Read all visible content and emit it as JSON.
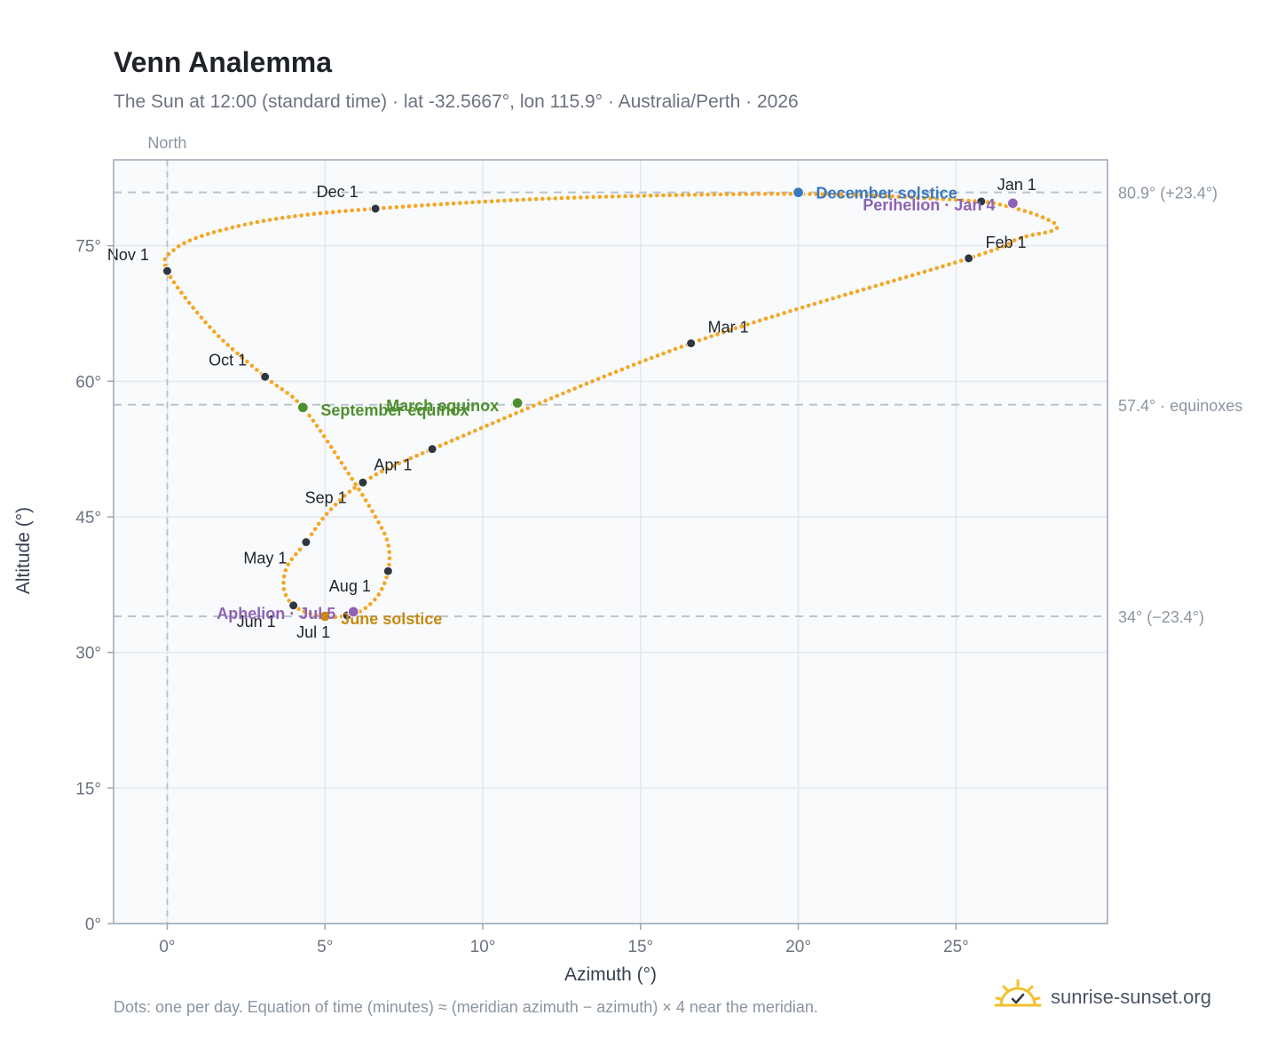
{
  "header": {
    "title": "Venn Analemma",
    "subtitle": "The Sun at 12:00 (standard time) · lat -32.5667°, lon 115.9° · Australia/Perth · 2026"
  },
  "footer": {
    "note": "Dots: one per day. Equation of time (minutes) ≈ (meridian azimuth − azimuth) × 4 near the meridian.",
    "brand": "sunrise-sunset.org"
  },
  "chart_data": {
    "type": "scatter",
    "xlabel": "Azimuth (°)",
    "ylabel": "Altitude (°)",
    "xlim": [
      -1.7,
      29.8
    ],
    "ylim": [
      0,
      84.5
    ],
    "xticks": [
      0,
      5,
      10,
      15,
      20,
      25
    ],
    "xtick_labels": [
      "0°",
      "5°",
      "10°",
      "15°",
      "20°",
      "25°"
    ],
    "yticks": [
      0,
      15,
      30,
      45,
      60,
      75
    ],
    "ytick_labels": [
      "0°",
      "15°",
      "30°",
      "45°",
      "60°",
      "75°"
    ],
    "grid": true,
    "north_line": {
      "x": 0,
      "label": "North"
    },
    "reference_lines": [
      {
        "y": 80.9,
        "label": "80.9° (+23.4°)"
      },
      {
        "y": 57.4,
        "label": "57.4° · equinoxes"
      },
      {
        "y": 34.0,
        "label": "34° (−23.4°)"
      }
    ],
    "colors": {
      "path": "#f5a623",
      "month": "#2f3640",
      "december_solstice": "#3a78c2",
      "june_solstice": "#c98a12",
      "equinox": "#4f8f2f",
      "apsis": "#8e63b5",
      "grid": "#e3e8ee",
      "ref_line": "#b8c4d0",
      "plot_bg": "#f8fafc",
      "frame": "#9aa7b6"
    },
    "series": [
      {
        "anchors": [
          [
            25.8,
            79.9
          ],
          [
            26.2,
            79.7
          ],
          [
            26.8,
            79.2
          ],
          [
            27.4,
            78.6
          ],
          [
            27.9,
            77.9
          ],
          [
            28.2,
            77.2
          ],
          [
            28.0,
            76.6
          ],
          [
            27.0,
            75.8
          ],
          [
            25.4,
            73.6
          ],
          [
            16.6,
            64.2
          ],
          [
            8.4,
            52.5
          ],
          [
            6.2,
            48.8
          ],
          [
            5.1,
            45.5
          ],
          [
            4.4,
            42.2
          ],
          [
            3.8,
            39.5
          ],
          [
            3.7,
            37.0
          ],
          [
            4.0,
            35.2
          ],
          [
            4.6,
            34.2
          ],
          [
            5.2,
            33.9
          ],
          [
            5.7,
            34.1
          ],
          [
            6.2,
            34.7
          ],
          [
            6.7,
            36.4
          ],
          [
            7.0,
            39.0
          ],
          [
            7.0,
            42.0
          ],
          [
            6.6,
            45.0
          ],
          [
            5.8,
            49.5
          ],
          [
            4.3,
            57.1
          ],
          [
            3.1,
            60.5
          ],
          [
            1.4,
            65.8
          ],
          [
            0.0,
            72.2
          ],
          [
            0.2,
            74.5
          ],
          [
            1.3,
            76.3
          ],
          [
            3.5,
            78.0
          ],
          [
            6.6,
            79.1
          ],
          [
            12.0,
            80.2
          ],
          [
            18.0,
            80.7
          ],
          [
            22.0,
            80.6
          ],
          [
            25.8,
            79.9
          ]
        ]
      }
    ],
    "month_markers": [
      {
        "label": "Jan 1",
        "x": 25.8,
        "y": 79.9
      },
      {
        "label": "Feb 1",
        "x": 25.4,
        "y": 73.6
      },
      {
        "label": "Mar 1",
        "x": 16.6,
        "y": 64.2
      },
      {
        "label": "Apr 1",
        "x": 6.2,
        "y": 48.8
      },
      {
        "label": "May 1",
        "x": 4.4,
        "y": 42.2
      },
      {
        "label": "Jun 1",
        "x": 4.0,
        "y": 35.2
      },
      {
        "label": "Jul 1",
        "x": 5.7,
        "y": 34.1
      },
      {
        "label": "Aug 1",
        "x": 7.0,
        "y": 39.0
      },
      {
        "label": "Sep 1",
        "x": 8.4,
        "y": 52.5
      },
      {
        "label": "Oct 1",
        "x": 3.1,
        "y": 60.5
      },
      {
        "label": "Nov 1",
        "x": 0.0,
        "y": 72.2
      },
      {
        "label": "Dec 1",
        "x": 6.6,
        "y": 79.1
      }
    ],
    "special_markers": [
      {
        "label": "December solstice",
        "x": 20.0,
        "y": 80.9,
        "kind": "december_solstice"
      },
      {
        "label": "Perihelion · Jan 4",
        "x": 26.8,
        "y": 79.7,
        "kind": "apsis"
      },
      {
        "label": "March equinox",
        "x": 11.1,
        "y": 57.6,
        "kind": "equinox"
      },
      {
        "label": "September equinox",
        "x": 4.3,
        "y": 57.1,
        "kind": "equinox"
      },
      {
        "label": "June solstice",
        "x": 5.0,
        "y": 34.0,
        "kind": "june_solstice"
      },
      {
        "label": "Aphelion · Jul 5",
        "x": 5.9,
        "y": 34.5,
        "kind": "apsis"
      }
    ]
  }
}
